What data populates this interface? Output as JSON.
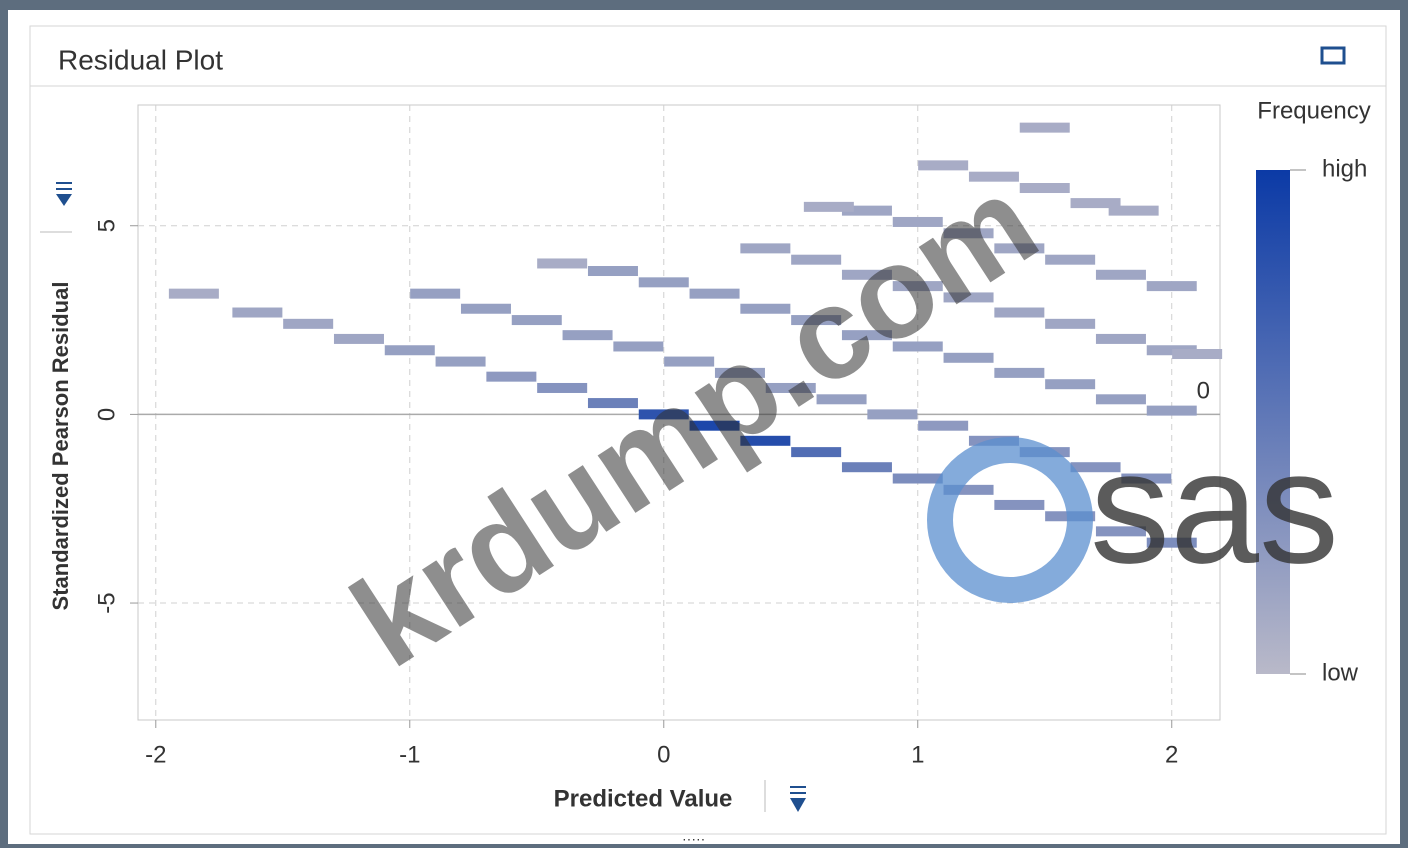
{
  "chart_data": {
    "type": "scatter",
    "title": "Residual Plot",
    "x_label": "Predicted Value",
    "y_label": "Standardized Pearson Residual",
    "xlim": [
      -2.07,
      2.19
    ],
    "ylim": [
      -8.1,
      8.2
    ],
    "xticks": [
      -2,
      -1,
      0,
      1,
      2
    ],
    "yticks": [
      -5,
      0,
      5
    ],
    "grid": true,
    "reference_line": 0,
    "legend": {
      "title": "Frequency",
      "high": "high",
      "low": "low",
      "position": "right",
      "low_color": "#b9b9c9",
      "high_color": "#0b3aa6"
    },
    "x": [
      -1.6,
      -1.4,
      -1.2,
      -1.0,
      -0.8,
      -0.6,
      -0.4,
      -0.2,
      0,
      0.2,
      0.4,
      0.6,
      0.8,
      1.0,
      1.2,
      1.4,
      1.6,
      1.8,
      2.0,
      -0.9,
      -0.7,
      -0.5,
      -0.3,
      -0.1,
      0.1,
      0.3,
      0.5,
      0.7,
      0.9,
      1.1,
      1.3,
      1.5,
      1.7,
      1.9,
      -0.2,
      0,
      0.2,
      0.4,
      0.6,
      0.8,
      1.0,
      1.2,
      1.4,
      1.6,
      1.8,
      2.0,
      0.4,
      0.6,
      0.8,
      1.0,
      1.2,
      1.4,
      1.6,
      1.8,
      2.0,
      0.8,
      1.0,
      1.2,
      1.4,
      1.6,
      1.8,
      2.0,
      1.1,
      1.3,
      1.5,
      1.7,
      -1.85,
      -0.4,
      0.65,
      1.85,
      1.5,
      2.1
    ],
    "y": [
      2.7,
      2.4,
      2.0,
      1.7,
      1.4,
      1.0,
      0.7,
      0.3,
      0,
      -0.3,
      -0.7,
      -1.0,
      -1.4,
      -1.7,
      -2.0,
      -2.4,
      -2.7,
      -3.1,
      -3.4,
      3.2,
      2.8,
      2.5,
      2.1,
      1.8,
      1.4,
      1.1,
      0.7,
      0.4,
      0.0,
      -0.3,
      -0.7,
      -1.0,
      -1.4,
      -1.7,
      3.8,
      3.5,
      3.2,
      2.8,
      2.5,
      2.1,
      1.8,
      1.5,
      1.1,
      0.8,
      0.4,
      0.1,
      4.4,
      4.1,
      3.7,
      3.4,
      3.1,
      2.7,
      2.4,
      2.0,
      1.7,
      5.4,
      5.1,
      4.8,
      4.4,
      4.1,
      3.7,
      3.4,
      6.6,
      6.3,
      6.0,
      5.6,
      3.2,
      4.0,
      5.5,
      5.4,
      7.6,
      1.6
    ],
    "frequency": [
      0.15,
      0.15,
      0.15,
      0.2,
      0.2,
      0.25,
      0.3,
      0.45,
      0.8,
      0.9,
      0.85,
      0.6,
      0.45,
      0.35,
      0.3,
      0.3,
      0.3,
      0.3,
      0.35,
      0.2,
      0.2,
      0.2,
      0.2,
      0.2,
      0.2,
      0.2,
      0.2,
      0.2,
      0.2,
      0.25,
      0.3,
      0.3,
      0.3,
      0.3,
      0.2,
      0.2,
      0.2,
      0.2,
      0.2,
      0.2,
      0.2,
      0.2,
      0.2,
      0.2,
      0.2,
      0.2,
      0.15,
      0.15,
      0.15,
      0.15,
      0.15,
      0.15,
      0.15,
      0.15,
      0.15,
      0.15,
      0.15,
      0.15,
      0.15,
      0.15,
      0.15,
      0.15,
      0.1,
      0.1,
      0.1,
      0.1,
      0.1,
      0.1,
      0.1,
      0.1,
      0.1,
      0.1
    ]
  },
  "watermarks": [
    "krdump.com",
    "sas"
  ]
}
